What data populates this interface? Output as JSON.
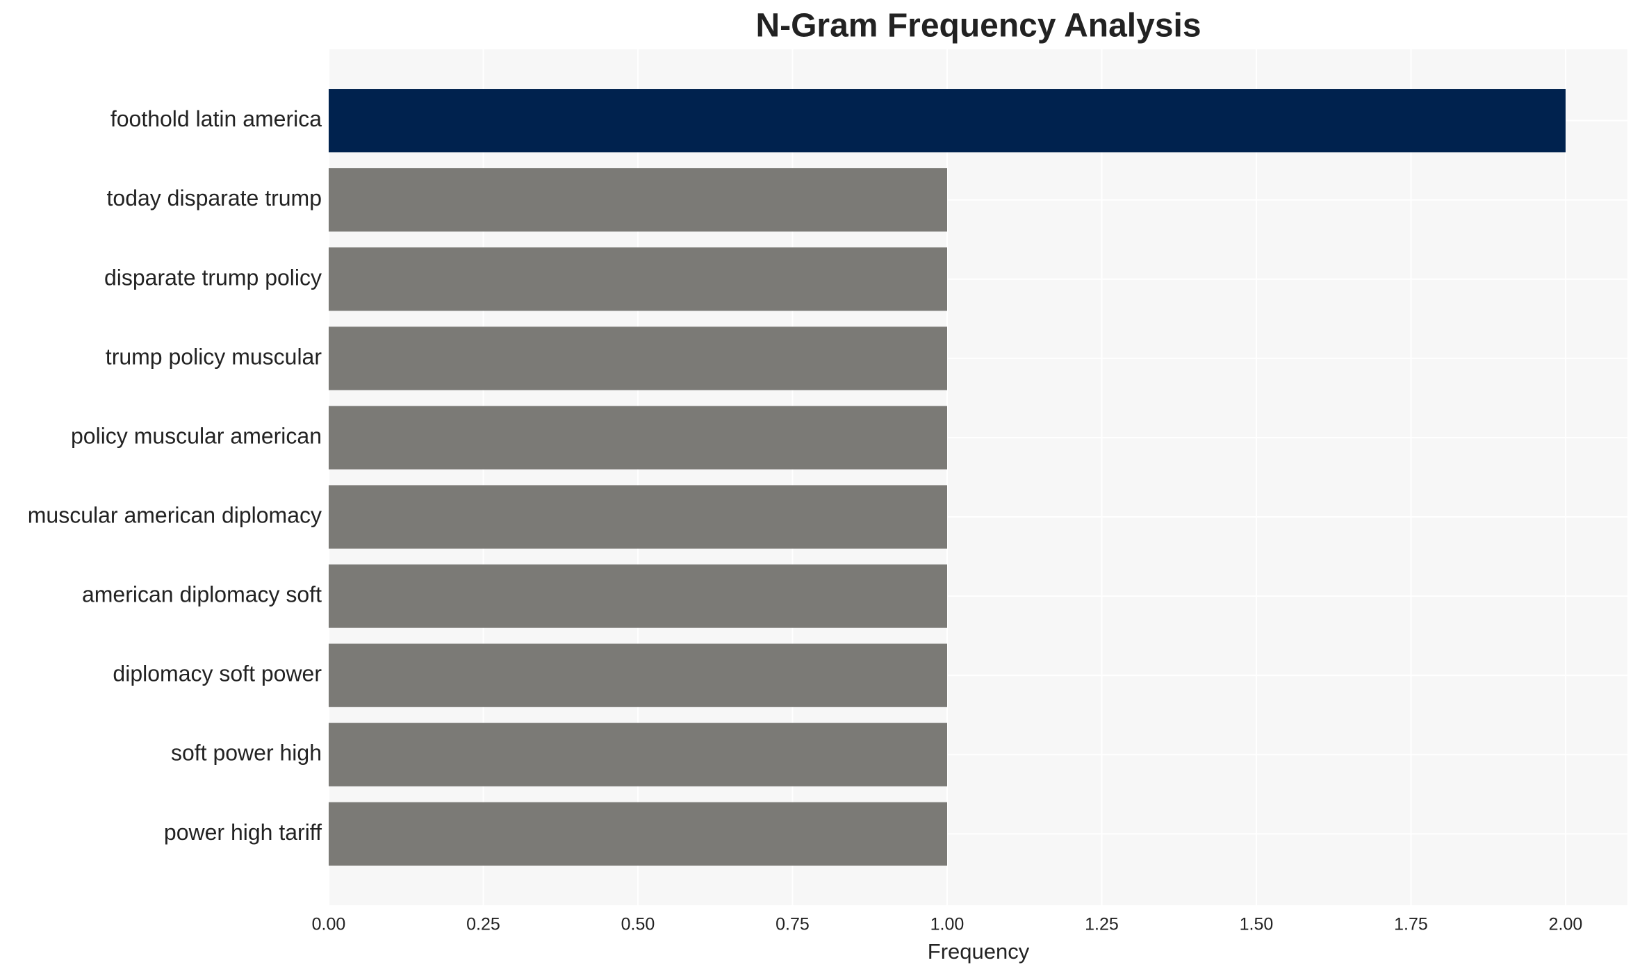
{
  "chart_data": {
    "type": "hbar",
    "title": "N-Gram Frequency Analysis",
    "x_label": "Frequency",
    "categories": [
      "foothold latin america",
      "today disparate trump",
      "disparate trump policy",
      "trump policy muscular",
      "policy muscular american",
      "muscular american diplomacy",
      "american diplomacy soft",
      "diplomacy soft power",
      "soft power high",
      "power high tariff"
    ],
    "values": [
      2,
      1,
      1,
      1,
      1,
      1,
      1,
      1,
      1,
      1
    ],
    "colors": [
      "#00224e",
      "#7b7a76",
      "#7b7a76",
      "#7b7a76",
      "#7b7a76",
      "#7b7a76",
      "#7b7a76",
      "#7b7a76",
      "#7b7a76",
      "#7b7a76"
    ],
    "xlim": [
      0,
      2.1
    ],
    "xticks": [
      {
        "value": 0,
        "label": "0.00"
      },
      {
        "value": 0.25,
        "label": "0.25"
      },
      {
        "value": 0.5,
        "label": "0.50"
      },
      {
        "value": 0.75,
        "label": "0.75"
      },
      {
        "value": 1,
        "label": "1.00"
      },
      {
        "value": 1.25,
        "label": "1.25"
      },
      {
        "value": 1.5,
        "label": "1.50"
      },
      {
        "value": 1.75,
        "label": "1.75"
      },
      {
        "value": 2,
        "label": "2.00"
      }
    ],
    "grid": true
  }
}
